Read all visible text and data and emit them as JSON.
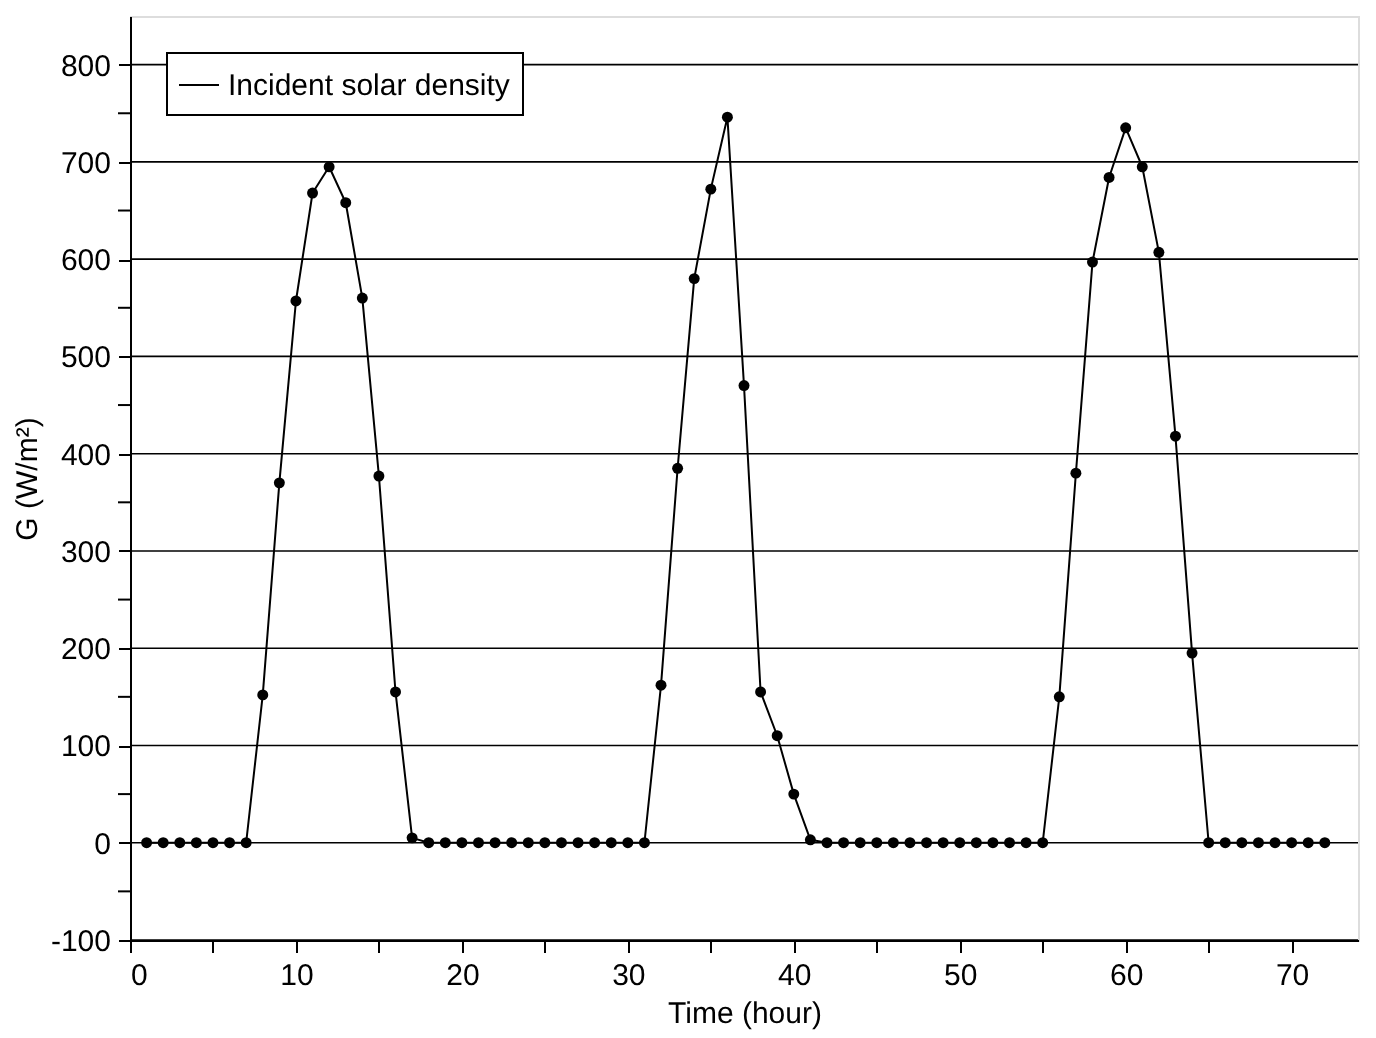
{
  "chart_data": {
    "type": "line",
    "xlabel": "Time (hour)",
    "ylabel": "G (W/m²)",
    "x": [
      1,
      2,
      3,
      4,
      5,
      6,
      7,
      8,
      9,
      10,
      11,
      12,
      13,
      14,
      15,
      16,
      17,
      18,
      19,
      20,
      21,
      22,
      23,
      24,
      25,
      26,
      27,
      28,
      29,
      30,
      31,
      32,
      33,
      34,
      35,
      36,
      37,
      38,
      39,
      40,
      41,
      42,
      43,
      44,
      45,
      46,
      47,
      48,
      49,
      50,
      51,
      52,
      53,
      54,
      55,
      56,
      57,
      58,
      59,
      60,
      61,
      62,
      63,
      64,
      65,
      66,
      67,
      68,
      69,
      70,
      71,
      72
    ],
    "series": [
      {
        "name": "Incident solar density",
        "color": "#000000",
        "values": [
          0,
          0,
          0,
          0,
          0,
          0,
          0,
          152,
          370,
          557,
          668,
          695,
          658,
          560,
          377,
          155,
          5,
          0,
          0,
          0,
          0,
          0,
          0,
          0,
          0,
          0,
          0,
          0,
          0,
          0,
          0,
          162,
          385,
          580,
          672,
          746,
          470,
          155,
          110,
          50,
          3,
          0,
          0,
          0,
          0,
          0,
          0,
          0,
          0,
          0,
          0,
          0,
          0,
          0,
          0,
          150,
          380,
          597,
          684,
          735,
          695,
          607,
          418,
          195,
          0,
          0,
          0,
          0,
          0,
          0,
          0,
          0
        ]
      }
    ],
    "xlim": [
      0,
      74
    ],
    "xticks": [
      0,
      {
        "value": 5,
        "label": null
      },
      10,
      {
        "value": 15,
        "label": null
      },
      20,
      {
        "value": 25,
        "label": null
      },
      30,
      {
        "value": 35,
        "label": null
      },
      40,
      {
        "value": 45,
        "label": null
      },
      50,
      {
        "value": 55,
        "label": null
      },
      60,
      {
        "value": 65,
        "label": null
      },
      70
    ],
    "ylim": [
      -100,
      850
    ],
    "yticks": [
      -100,
      {
        "value": -50,
        "label": null
      },
      0,
      {
        "value": 50,
        "label": null
      },
      100,
      {
        "value": 150,
        "label": null
      },
      200,
      {
        "value": 250,
        "label": null
      },
      300,
      {
        "value": 350,
        "label": null
      },
      400,
      {
        "value": 450,
        "label": null
      },
      500,
      {
        "value": 550,
        "label": null
      },
      600,
      {
        "value": 650,
        "label": null
      },
      700,
      {
        "value": 750,
        "label": null
      },
      800
    ],
    "grid": "y",
    "legend": "top left",
    "marker": "circle",
    "line_style": "solid"
  }
}
